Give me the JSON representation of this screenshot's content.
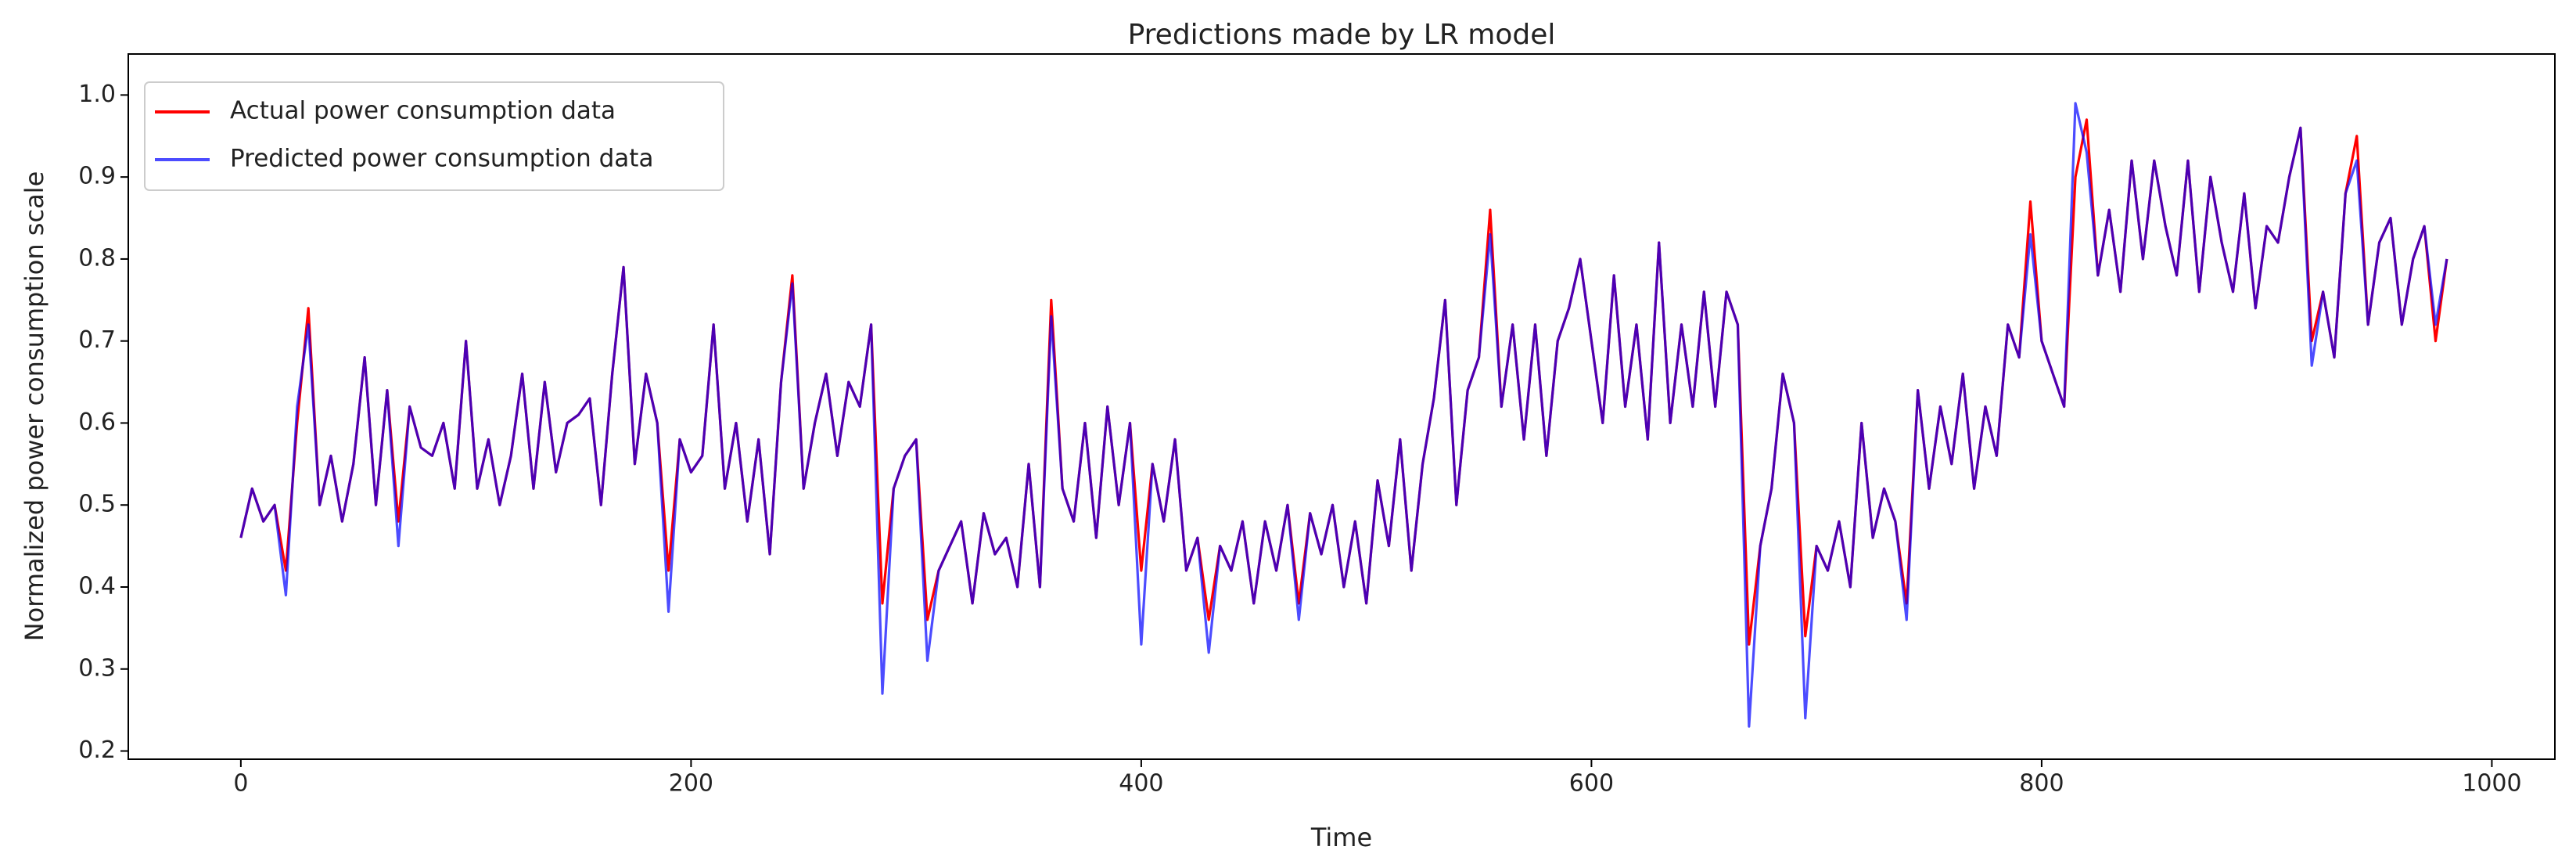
{
  "chart_data": {
    "type": "line",
    "title": "Predictions made by LR model",
    "xlabel": "Time",
    "ylabel": "Normalized power consumption scale",
    "xlim": [
      -50,
      1028
    ],
    "ylim": [
      0.19,
      1.05
    ],
    "xticks": [
      0,
      200,
      400,
      600,
      800,
      1000
    ],
    "yticks": [
      0.2,
      0.3,
      0.4,
      0.5,
      0.6,
      0.7,
      0.8,
      0.9,
      {
        "value": 1.0,
        "label": "1.0"
      }
    ],
    "grid": false,
    "legend": "upper left",
    "x": [
      0,
      5,
      10,
      15,
      20,
      25,
      30,
      35,
      40,
      45,
      50,
      55,
      60,
      65,
      70,
      75,
      80,
      85,
      90,
      95,
      100,
      105,
      110,
      115,
      120,
      125,
      130,
      135,
      140,
      145,
      150,
      155,
      160,
      165,
      170,
      175,
      180,
      185,
      190,
      195,
      200,
      205,
      210,
      215,
      220,
      225,
      230,
      235,
      240,
      245,
      250,
      255,
      260,
      265,
      270,
      275,
      280,
      285,
      290,
      295,
      300,
      305,
      310,
      315,
      320,
      325,
      330,
      335,
      340,
      345,
      350,
      355,
      360,
      365,
      370,
      375,
      380,
      385,
      390,
      395,
      400,
      405,
      410,
      415,
      420,
      425,
      430,
      435,
      440,
      445,
      450,
      455,
      460,
      465,
      470,
      475,
      480,
      485,
      490,
      495,
      500,
      505,
      510,
      515,
      520,
      525,
      530,
      535,
      540,
      545,
      550,
      555,
      560,
      565,
      570,
      575,
      580,
      585,
      590,
      595,
      600,
      605,
      610,
      615,
      620,
      625,
      630,
      635,
      640,
      645,
      650,
      655,
      660,
      665,
      670,
      675,
      680,
      685,
      690,
      695,
      700,
      705,
      710,
      715,
      720,
      725,
      730,
      735,
      740,
      745,
      750,
      755,
      760,
      765,
      770,
      775,
      780,
      785,
      790,
      795,
      800,
      805,
      810,
      815,
      820,
      825,
      830,
      835,
      840,
      845,
      850,
      855,
      860,
      865,
      870,
      875,
      880,
      885,
      890,
      895,
      900,
      905,
      910,
      915,
      920,
      925,
      930,
      935,
      940,
      945,
      950,
      955,
      960,
      965,
      970,
      975,
      980
    ],
    "series": [
      {
        "name": "Actual power consumption data",
        "color": "#ff0000",
        "values": [
          0.46,
          0.52,
          0.48,
          0.5,
          0.42,
          0.6,
          0.74,
          0.5,
          0.56,
          0.48,
          0.55,
          0.68,
          0.5,
          0.64,
          0.48,
          0.62,
          0.57,
          0.56,
          0.6,
          0.52,
          0.7,
          0.52,
          0.58,
          0.5,
          0.56,
          0.66,
          0.52,
          0.65,
          0.54,
          0.6,
          0.61,
          0.63,
          0.5,
          0.66,
          0.79,
          0.55,
          0.66,
          0.6,
          0.42,
          0.58,
          0.54,
          0.56,
          0.72,
          0.52,
          0.6,
          0.48,
          0.58,
          0.44,
          0.65,
          0.78,
          0.52,
          0.6,
          0.66,
          0.56,
          0.65,
          0.62,
          0.72,
          0.38,
          0.52,
          0.56,
          0.58,
          0.36,
          0.42,
          0.45,
          0.48,
          0.38,
          0.49,
          0.44,
          0.46,
          0.4,
          0.55,
          0.4,
          0.75,
          0.52,
          0.48,
          0.6,
          0.46,
          0.62,
          0.5,
          0.6,
          0.42,
          0.55,
          0.48,
          0.58,
          0.42,
          0.46,
          0.36,
          0.45,
          0.42,
          0.48,
          0.38,
          0.48,
          0.42,
          0.5,
          0.38,
          0.49,
          0.44,
          0.5,
          0.4,
          0.48,
          0.38,
          0.53,
          0.45,
          0.58,
          0.42,
          0.55,
          0.63,
          0.75,
          0.5,
          0.64,
          0.68,
          0.86,
          0.62,
          0.72,
          0.58,
          0.72,
          0.56,
          0.7,
          0.74,
          0.8,
          0.7,
          0.6,
          0.78,
          0.62,
          0.72,
          0.58,
          0.82,
          0.6,
          0.72,
          0.62,
          0.76,
          0.62,
          0.76,
          0.72,
          0.33,
          0.45,
          0.52,
          0.66,
          0.6,
          0.34,
          0.45,
          0.42,
          0.48,
          0.4,
          0.6,
          0.46,
          0.52,
          0.48,
          0.38,
          0.64,
          0.52,
          0.62,
          0.55,
          0.66,
          0.52,
          0.62,
          0.56,
          0.72,
          0.68,
          0.87,
          0.7,
          0.66,
          0.62,
          0.9,
          0.97,
          0.78,
          0.86,
          0.76,
          0.92,
          0.8,
          0.92,
          0.84,
          0.78,
          0.92,
          0.76,
          0.9,
          0.82,
          0.76,
          0.88,
          0.74,
          0.84,
          0.82,
          0.9,
          0.96,
          0.7,
          0.76,
          0.68,
          0.88,
          0.95,
          0.72,
          0.82,
          0.85,
          0.72,
          0.8,
          0.84,
          0.7,
          0.8
        ]
      },
      {
        "name": "Predicted power consumption data",
        "color": "#0000ff",
        "values": [
          0.46,
          0.52,
          0.48,
          0.5,
          0.39,
          0.62,
          0.72,
          0.5,
          0.56,
          0.48,
          0.55,
          0.68,
          0.5,
          0.64,
          0.45,
          0.62,
          0.57,
          0.56,
          0.6,
          0.52,
          0.7,
          0.52,
          0.58,
          0.5,
          0.56,
          0.66,
          0.52,
          0.65,
          0.54,
          0.6,
          0.61,
          0.63,
          0.5,
          0.66,
          0.79,
          0.55,
          0.66,
          0.6,
          0.37,
          0.58,
          0.54,
          0.56,
          0.72,
          0.52,
          0.6,
          0.48,
          0.58,
          0.44,
          0.65,
          0.77,
          0.52,
          0.6,
          0.66,
          0.56,
          0.65,
          0.62,
          0.72,
          0.27,
          0.52,
          0.56,
          0.58,
          0.31,
          0.42,
          0.45,
          0.48,
          0.38,
          0.49,
          0.44,
          0.46,
          0.4,
          0.55,
          0.4,
          0.73,
          0.52,
          0.48,
          0.6,
          0.46,
          0.62,
          0.5,
          0.6,
          0.33,
          0.55,
          0.48,
          0.58,
          0.42,
          0.46,
          0.32,
          0.45,
          0.42,
          0.48,
          0.38,
          0.48,
          0.42,
          0.5,
          0.36,
          0.49,
          0.44,
          0.5,
          0.4,
          0.48,
          0.38,
          0.53,
          0.45,
          0.58,
          0.42,
          0.55,
          0.63,
          0.75,
          0.5,
          0.64,
          0.68,
          0.83,
          0.62,
          0.72,
          0.58,
          0.72,
          0.56,
          0.7,
          0.74,
          0.8,
          0.7,
          0.6,
          0.78,
          0.62,
          0.72,
          0.58,
          0.82,
          0.6,
          0.72,
          0.62,
          0.76,
          0.62,
          0.76,
          0.72,
          0.23,
          0.45,
          0.52,
          0.66,
          0.6,
          0.24,
          0.45,
          0.42,
          0.48,
          0.4,
          0.6,
          0.46,
          0.52,
          0.48,
          0.36,
          0.64,
          0.52,
          0.62,
          0.55,
          0.66,
          0.52,
          0.62,
          0.56,
          0.72,
          0.68,
          0.83,
          0.7,
          0.66,
          0.62,
          0.99,
          0.93,
          0.78,
          0.86,
          0.76,
          0.92,
          0.8,
          0.92,
          0.84,
          0.78,
          0.92,
          0.76,
          0.9,
          0.82,
          0.76,
          0.88,
          0.74,
          0.84,
          0.82,
          0.9,
          0.96,
          0.67,
          0.76,
          0.68,
          0.88,
          0.92,
          0.72,
          0.82,
          0.85,
          0.72,
          0.8,
          0.84,
          0.72,
          0.8
        ]
      }
    ]
  }
}
